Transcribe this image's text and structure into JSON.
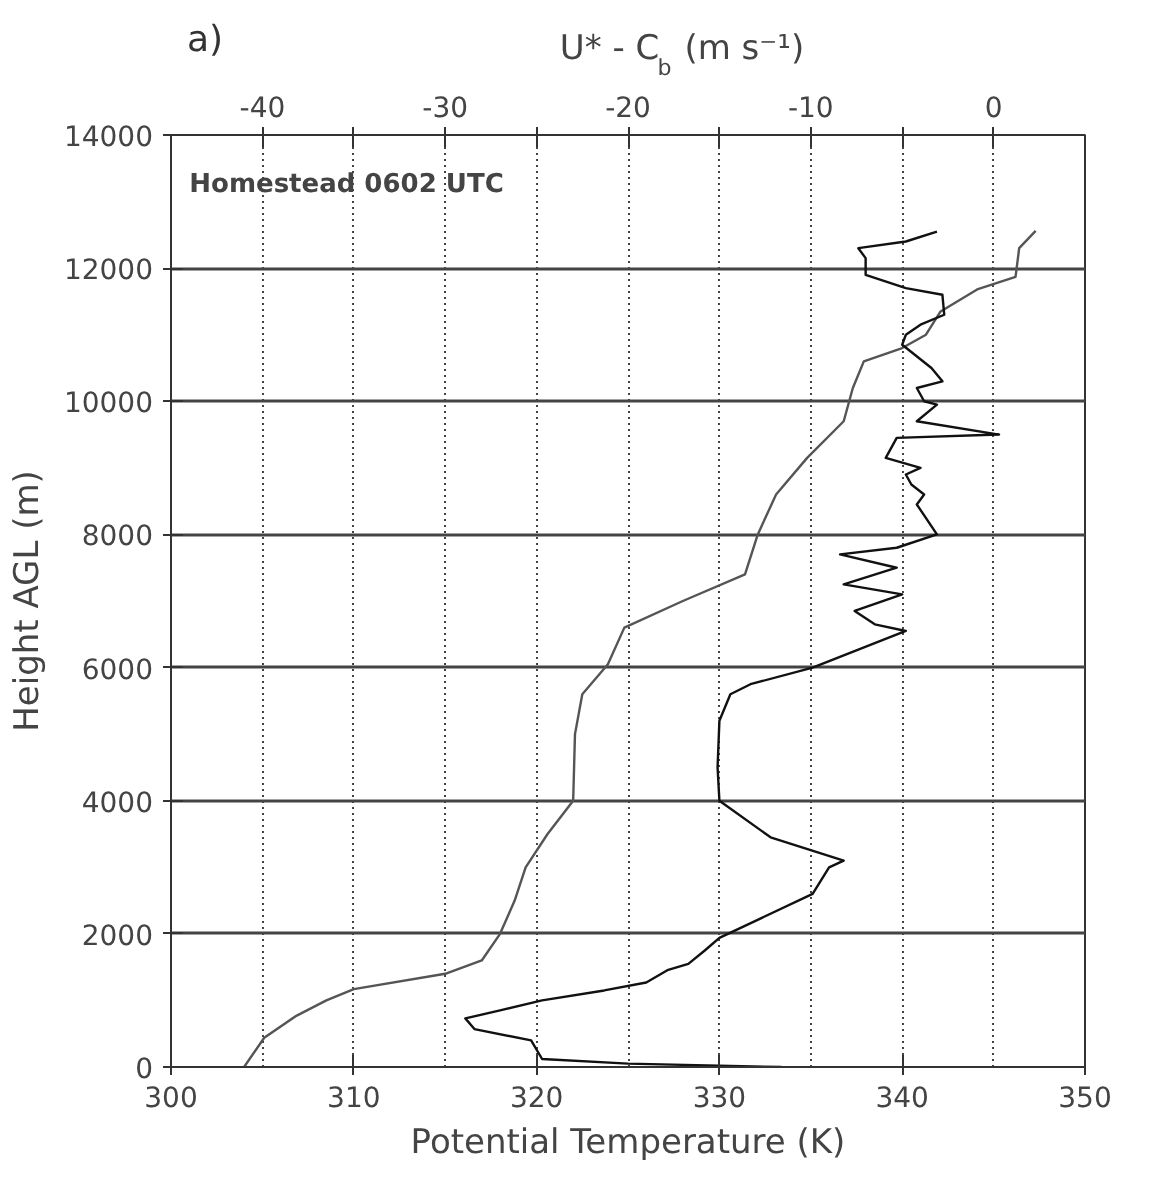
{
  "chart_data": {
    "type": "line",
    "title": "a)",
    "xlabel": "Potential Temperature (K)",
    "ylabel": "Height AGL (m)",
    "x2label": "U* - C$_{b}$ (m s⁻¹)",
    "annotations": [
      "Homestead 0602 UTC"
    ],
    "xlim": [
      300,
      350
    ],
    "xticks": [
      300,
      310,
      320,
      330,
      340,
      350
    ],
    "x2lim": [
      -45,
      5
    ],
    "x2ticks": [
      -40,
      {
        "value": -35,
        "label": null
      },
      -30,
      {
        "value": -25,
        "label": null
      },
      -20,
      {
        "value": -15,
        "label": null
      },
      -10,
      {
        "value": -5,
        "label": null
      },
      0
    ],
    "ylim": [
      0,
      14000
    ],
    "yticks": [
      0,
      2000,
      4000,
      6000,
      8000,
      10000,
      12000,
      14000
    ],
    "grid": true,
    "marker": "none",
    "line_style": "solid",
    "series": [
      {
        "color": "#555555",
        "x": [
          304.0,
          305.1,
          306.8,
          308.5,
          310.0,
          315.0,
          317.0,
          318.0,
          318.8,
          319.4,
          320.6,
          322.0,
          322.1,
          322.5,
          323.9,
          324.8,
          328.0,
          331.4,
          332.1,
          333.1,
          334.8,
          336.8,
          337.3,
          337.9,
          340.0,
          341.3,
          342.1,
          344.1,
          346.2,
          346.4,
          347.3
        ],
        "values": [
          0,
          440,
          760,
          1000,
          1170,
          1400,
          1600,
          2000,
          2500,
          3000,
          3500,
          4000,
          5000,
          5600,
          6050,
          6600,
          7000,
          7400,
          8000,
          8600,
          9150,
          9700,
          10200,
          10600,
          10800,
          11000,
          11350,
          11680,
          11870,
          12300,
          12560
        ]
      },
      {
        "color": "#111111",
        "axis": "x2",
        "x": [
          -11.6,
          -20.0,
          -24.7,
          -25.3,
          -28.4,
          -28.9,
          -27.0,
          -24.7,
          -21.3,
          -19.0,
          -17.8,
          -16.7,
          -15.8,
          -15.0,
          -9.9,
          -9.0,
          -8.2,
          -12.2,
          -15.0,
          -15.1,
          -15.0,
          -14.4,
          -13.3,
          -9.9,
          -4.8,
          -6.5,
          -7.6,
          -5.0,
          -8.2,
          -5.3,
          -8.4,
          -5.3,
          -3.1,
          -4.2,
          -3.8,
          -4.5,
          -4.8,
          -4.0,
          -5.9,
          -5.3,
          0.3,
          -4.2,
          -3.1,
          -3.8,
          -4.2,
          -2.8,
          -3.4,
          -5.0,
          -4.8,
          -4.0,
          -2.7,
          -2.8,
          -4.8,
          -7.0,
          -7.0,
          -7.4,
          -4.8,
          -3.1
        ],
        "values": [
          0,
          50,
          120,
          400,
          570,
          730,
          850,
          1000,
          1150,
          1270,
          1460,
          1550,
          1750,
          1940,
          2600,
          3000,
          3100,
          3450,
          4000,
          4500,
          5200,
          5600,
          5750,
          6000,
          6550,
          6650,
          6850,
          7100,
          7250,
          7500,
          7700,
          7800,
          8000,
          8450,
          8600,
          8750,
          8900,
          9000,
          9150,
          9450,
          9500,
          9700,
          9950,
          10000,
          10200,
          10300,
          10500,
          10850,
          11000,
          11150,
          11300,
          11600,
          11700,
          11900,
          12150,
          12300,
          12400,
          12550
        ]
      }
    ]
  }
}
